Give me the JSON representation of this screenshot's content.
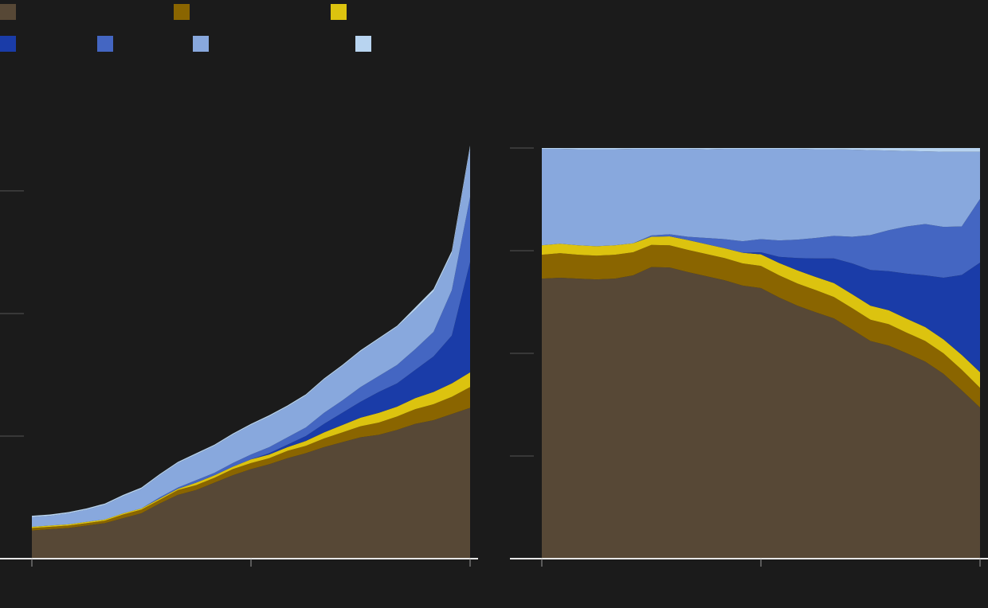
{
  "chart_data": [
    {
      "type": "area",
      "stacked": true,
      "x": [
        0,
        1,
        2,
        3,
        4,
        5,
        6,
        7,
        8,
        9,
        10,
        11,
        12,
        13,
        14,
        15,
        16,
        17,
        18,
        19,
        20,
        21,
        22,
        23,
        24
      ],
      "xlim": [
        0,
        24
      ],
      "xticks": [
        0,
        12,
        24
      ],
      "ylim": [
        0,
        3.35
      ],
      "yticks": [
        0,
        1,
        2,
        3
      ],
      "series": [
        {
          "color": "#574836",
          "values": [
            0.23,
            0.24,
            0.25,
            0.27,
            0.29,
            0.33,
            0.37,
            0.45,
            0.52,
            0.56,
            0.62,
            0.68,
            0.73,
            0.77,
            0.82,
            0.86,
            0.91,
            0.95,
            0.99,
            1.01,
            1.05,
            1.1,
            1.13,
            1.18,
            1.23
          ]
        },
        {
          "color": "#8a6500",
          "values": [
            0.02,
            0.02,
            0.02,
            0.02,
            0.02,
            0.03,
            0.03,
            0.03,
            0.04,
            0.04,
            0.04,
            0.05,
            0.05,
            0.05,
            0.06,
            0.06,
            0.07,
            0.08,
            0.09,
            0.1,
            0.11,
            0.12,
            0.13,
            0.14,
            0.17
          ]
        },
        {
          "color": "#dcc30f",
          "values": [
            0.01,
            0.01,
            0.01,
            0.01,
            0.01,
            0.01,
            0.01,
            0.01,
            0.01,
            0.02,
            0.02,
            0.02,
            0.03,
            0.03,
            0.03,
            0.04,
            0.05,
            0.06,
            0.07,
            0.08,
            0.08,
            0.09,
            0.1,
            0.11,
            0.12
          ]
        },
        {
          "color": "#1a3ca8",
          "values": [
            0,
            0,
            0,
            0,
            0,
            0,
            0,
            0,
            0,
            0,
            0,
            0,
            0,
            0.01,
            0.02,
            0.04,
            0.07,
            0.1,
            0.13,
            0.17,
            0.19,
            0.23,
            0.29,
            0.39,
            0.9
          ]
        },
        {
          "color": "#4466c2",
          "values": [
            0,
            0,
            0,
            0,
            0,
            0,
            0,
            0.01,
            0.01,
            0.02,
            0.02,
            0.03,
            0.04,
            0.05,
            0.06,
            0.07,
            0.09,
            0.1,
            0.12,
            0.13,
            0.15,
            0.17,
            0.2,
            0.37,
            0.53
          ]
        },
        {
          "color": "#88a8dd",
          "values": [
            0.08,
            0.08,
            0.09,
            0.1,
            0.12,
            0.14,
            0.16,
            0.18,
            0.2,
            0.21,
            0.22,
            0.23,
            0.24,
            0.25,
            0.25,
            0.26,
            0.27,
            0.28,
            0.29,
            0.3,
            0.31,
            0.32,
            0.33,
            0.3,
            0.4
          ]
        },
        {
          "color": "#b8d4f0",
          "values": [
            0.01,
            0.01,
            0.01,
            0.01,
            0.01,
            0.01,
            0.01,
            0.01,
            0.01,
            0.01,
            0.01,
            0.01,
            0.01,
            0.01,
            0.01,
            0.01,
            0.01,
            0.01,
            0.01,
            0.01,
            0.01,
            0.02,
            0.02,
            0.02,
            0.02
          ]
        }
      ]
    },
    {
      "type": "area",
      "stacked": true,
      "x": [
        0,
        1,
        2,
        3,
        4,
        5,
        6,
        7,
        8,
        9,
        10,
        11,
        12,
        13,
        14,
        15,
        16,
        17,
        18,
        19,
        20,
        21,
        22,
        23,
        24
      ],
      "xlim": [
        0,
        24
      ],
      "xticks": [
        0,
        12,
        24
      ],
      "ylim": [
        0,
        100
      ],
      "yticks": [
        0,
        25,
        50,
        75,
        100
      ],
      "series": [
        {
          "color": "#574836",
          "values": [
            68.2,
            68.4,
            68.2,
            68.0,
            68.2,
            69.0,
            71.0,
            70.9,
            69.8,
            68.8,
            67.8,
            66.5,
            65.9,
            63.6,
            61.6,
            60.0,
            58.5,
            55.8,
            53.0,
            51.9,
            50.0,
            48.0,
            45.0,
            41.0,
            36.8
          ]
        },
        {
          "color": "#8a6500",
          "values": [
            5.8,
            6.0,
            5.8,
            5.8,
            5.8,
            5.6,
            5.4,
            5.4,
            5.4,
            5.4,
            5.4,
            5.4,
            5.4,
            5.4,
            5.4,
            5.4,
            5.2,
            5.2,
            5.2,
            5.2,
            5.0,
            5.0,
            5.0,
            5.0,
            4.8
          ]
        },
        {
          "color": "#dcc30f",
          "values": [
            2.3,
            2.3,
            2.3,
            2.3,
            2.3,
            2.2,
            2.0,
            2.2,
            2.4,
            2.4,
            2.4,
            2.6,
            2.8,
            3.0,
            3.2,
            3.2,
            3.4,
            3.4,
            3.4,
            3.4,
            3.4,
            3.4,
            3.4,
            3.6,
            3.8
          ]
        },
        {
          "color": "#1a3ca8",
          "values": [
            0,
            0,
            0,
            0,
            0,
            0,
            0,
            0,
            0,
            0,
            0,
            0,
            0.5,
            1.5,
            3.0,
            4.5,
            6.0,
            7.5,
            8.7,
            9.5,
            11.0,
            12.6,
            15.0,
            19.5,
            26.7
          ]
        },
        {
          "color": "#4466c2",
          "values": [
            0,
            0,
            0,
            0,
            0,
            0,
            0.3,
            0.5,
            0.8,
            1.5,
            2.2,
            2.8,
            3.2,
            4.0,
            4.5,
            5.0,
            5.5,
            6.5,
            8.5,
            10.0,
            11.5,
            12.5,
            12.4,
            11.8,
            15.5
          ]
        },
        {
          "color": "#88a8dd",
          "values": [
            23.5,
            23.1,
            23.4,
            23.6,
            23.4,
            23.0,
            21.1,
            20.8,
            21.4,
            21.6,
            22.0,
            22.5,
            22.0,
            22.3,
            22.1,
            21.6,
            21.1,
            21.2,
            20.7,
            19.4,
            18.4,
            17.7,
            18.3,
            18.2,
            11.5
          ]
        },
        {
          "color": "#b8d4f0",
          "values": [
            0.2,
            0.2,
            0.3,
            0.3,
            0.3,
            0.2,
            0.2,
            0.2,
            0.2,
            0.3,
            0.2,
            0.2,
            0.2,
            0.2,
            0.2,
            0.3,
            0.3,
            0.4,
            0.5,
            0.6,
            0.7,
            0.8,
            0.9,
            0.9,
            0.9
          ]
        }
      ]
    }
  ]
}
